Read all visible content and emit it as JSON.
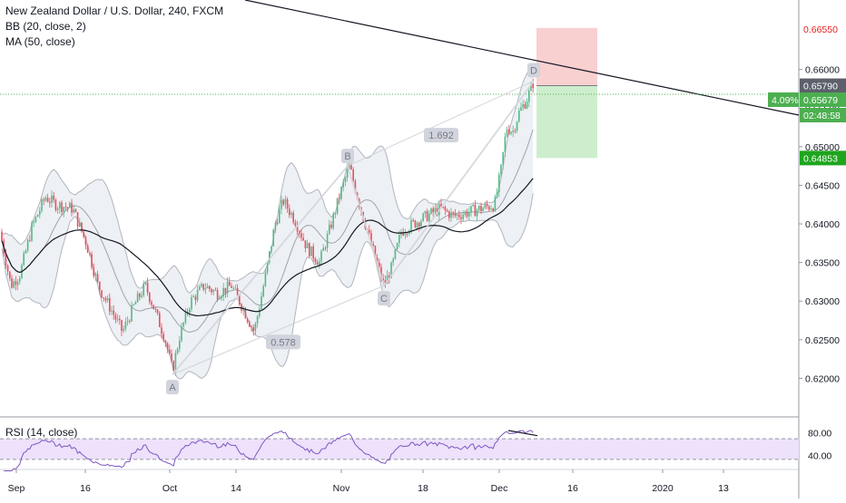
{
  "legend": {
    "symbol": "New Zealand Dollar / U.S. Dollar, 240, FXCM",
    "bb": "BB (20, close, 2)",
    "ma": "MA (50, close)"
  },
  "rsi_label": "RSI (14, close)",
  "colors": {
    "up": "#53b987",
    "down": "#eb4d5c",
    "bb_fill": "#e9ecf1",
    "rsi_fill": "#ede1fb",
    "stop_zone": "#f8c8c8",
    "target_zone": "#c8ecc8",
    "price_line": "#4caf50"
  },
  "chart_data": {
    "type": "candlestick",
    "instrument": "New Zealand Dollar / U.S. Dollar",
    "timeframe": "240",
    "source": "FXCM",
    "ylim": [
      0.615,
      0.669
    ],
    "y_ticks": [
      "0.66000",
      "0.65500",
      "0.65000",
      "0.64500",
      "0.64000",
      "0.63500",
      "0.63000",
      "0.62500",
      "0.62000"
    ],
    "x_ticks": [
      "Sep",
      "16",
      "Oct",
      "14",
      "Nov",
      "18",
      "Dec",
      "16",
      "2020",
      "13"
    ],
    "harmonic_points": [
      {
        "label": "A",
        "price": 0.6205
      },
      {
        "label": "B",
        "price": 0.6475
      },
      {
        "label": "C",
        "price": 0.632
      },
      {
        "label": "D",
        "price": 0.6585
      }
    ],
    "harmonic_ratios": [
      "0.578",
      "1.692"
    ],
    "price_labels": [
      {
        "value": "0.66550",
        "kind": "stop"
      },
      {
        "value": "0.65790",
        "kind": "entry"
      },
      {
        "value": "0.65679",
        "kind": "last"
      },
      {
        "value": "02:48:58",
        "kind": "countdown"
      },
      {
        "value": "0.64853",
        "kind": "target"
      }
    ],
    "last_change": "4.09%",
    "rsi": {
      "ticks": [
        "80.00",
        "40.00"
      ],
      "levels": [
        70,
        30
      ]
    },
    "position": {
      "entry": 0.6579,
      "stop": 0.6655,
      "target": 0.64853
    }
  }
}
